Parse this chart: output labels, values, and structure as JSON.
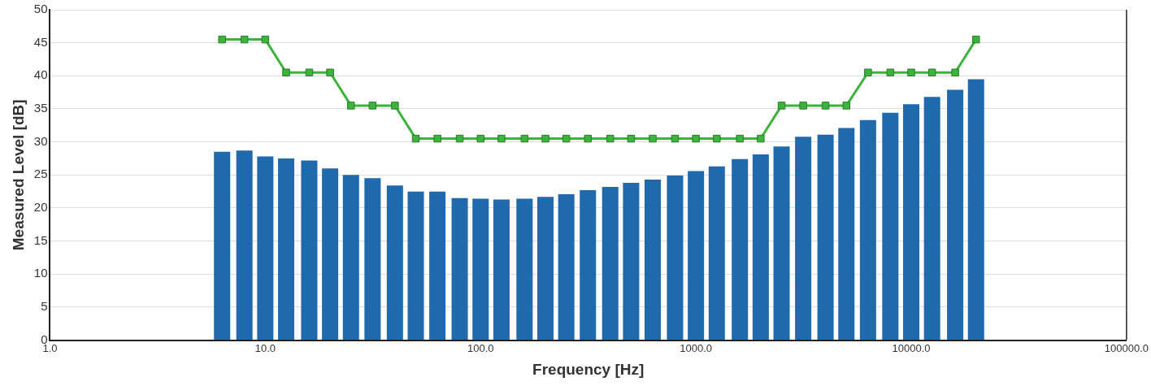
{
  "chart_data": {
    "type": "bar",
    "xlabel": "Frequency [Hz]",
    "ylabel": "Measured Level [dB]",
    "x": [
      6.3,
      8,
      10,
      12.5,
      16,
      20,
      25,
      31.5,
      40,
      50,
      63,
      80,
      100,
      125,
      160,
      200,
      250,
      315,
      400,
      500,
      630,
      800,
      1000,
      1250,
      1600,
      2000,
      2500,
      3150,
      4000,
      5000,
      6300,
      8000,
      10000,
      12500,
      16000,
      20000
    ],
    "series": [
      {
        "color": "#1f6aad",
        "values": [
          28.5,
          28.7,
          27.8,
          27.5,
          27.2,
          26.0,
          25.0,
          24.5,
          23.4,
          22.5,
          22.5,
          21.5,
          21.4,
          21.3,
          21.4,
          21.7,
          22.1,
          22.7,
          23.2,
          23.8,
          24.3,
          24.9,
          25.6,
          26.3,
          27.4,
          28.1,
          29.3,
          30.8,
          31.1,
          32.1,
          33.3,
          34.4,
          35.7,
          36.8,
          37.9,
          39.5
        ]
      },
      {
        "type": "line",
        "color": "#3cb43c",
        "marker": "square",
        "values": [
          45.5,
          45.5,
          45.5,
          40.5,
          40.5,
          40.5,
          35.5,
          35.5,
          35.5,
          30.5,
          30.5,
          30.5,
          30.5,
          30.5,
          30.5,
          30.5,
          30.5,
          30.5,
          30.5,
          30.5,
          30.5,
          30.5,
          30.5,
          30.5,
          30.5,
          30.5,
          35.5,
          35.5,
          35.5,
          35.5,
          40.5,
          40.5,
          40.5,
          40.5,
          40.5,
          45.5
        ]
      }
    ],
    "log": "x",
    "xlim": [
      1,
      100000
    ],
    "xticks": [
      {
        "value": 1,
        "label": "1.0"
      },
      {
        "value": 10,
        "label": "10.0"
      },
      {
        "value": 100,
        "label": "100.0"
      },
      {
        "value": 1000,
        "label": "1000.0"
      },
      {
        "value": 10000,
        "label": "10000.0"
      },
      {
        "value": 100000,
        "label": "100000.0"
      }
    ],
    "ylim": [
      0,
      50
    ],
    "yticks": [
      0,
      5,
      10,
      15,
      20,
      25,
      30,
      35,
      40,
      45,
      50
    ],
    "grid": "y",
    "legend": false
  }
}
